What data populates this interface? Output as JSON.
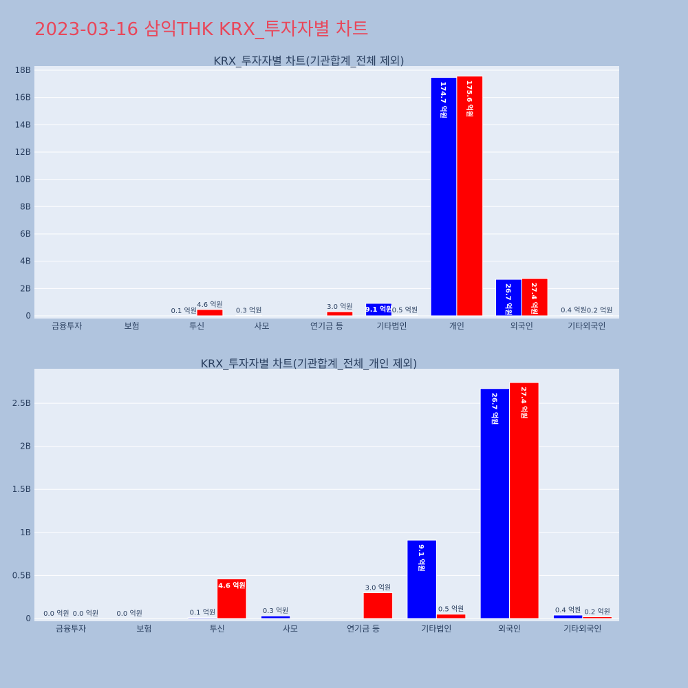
{
  "page_title": "2023-03-16 삼익THK KRX_투자자별 차트",
  "colors": {
    "series_a": "#0000ff",
    "series_b": "#ff0000",
    "background": "#b0c4de",
    "plot_bg": "#e5ecf6",
    "title": "#e8475a"
  },
  "chart_data": [
    {
      "type": "bar",
      "title": "KRX_투자자별 차트(기관합계_전체 제외)",
      "categories": [
        "금융투자",
        "보험",
        "투신",
        "사모",
        "연기금 등",
        "기타법인",
        "개인",
        "외국인",
        "기타외국인"
      ],
      "series": [
        {
          "color": "#0000ff",
          "values": [
            0,
            0,
            0.01,
            0.03,
            0,
            0.91,
            17.47,
            2.67,
            0.04
          ],
          "labels": [
            "",
            "",
            "0.1 억원",
            "0.3 억원",
            "",
            "9.1 억원",
            "174.7 억원",
            "26.7 억원",
            "0.4 억원"
          ]
        },
        {
          "color": "#ff0000",
          "values": [
            0,
            0,
            0.46,
            0,
            0.3,
            0.05,
            17.56,
            2.74,
            0.02
          ],
          "labels": [
            "",
            "",
            "4.6 억원",
            "",
            "3.0 억원",
            "0.5 억원",
            "175.6 억원",
            "27.4 억원",
            "0.2 억원"
          ]
        }
      ],
      "yticks": [
        0,
        2,
        4,
        6,
        8,
        10,
        12,
        14,
        16,
        18
      ],
      "ytick_labels": [
        "0",
        "2B",
        "4B",
        "6B",
        "8B",
        "10B",
        "12B",
        "14B",
        "16B",
        "18B"
      ],
      "ylim": [
        0,
        18.3
      ]
    },
    {
      "type": "bar",
      "title": "KRX_투자자별 차트(기관합계_전체_개인 제외)",
      "categories": [
        "금융투자",
        "보험",
        "투신",
        "사모",
        "연기금 등",
        "기타법인",
        "외국인",
        "기타외국인"
      ],
      "series": [
        {
          "color": "#0000ff",
          "values": [
            0,
            0,
            0.01,
            0.03,
            0,
            0.91,
            2.67,
            0.04
          ],
          "labels": [
            "0.0 억원",
            "0.0 억원",
            "0.1 억원",
            "0.3 억원",
            "",
            "9.1 억원",
            "26.7 억원",
            "0.4 억원"
          ]
        },
        {
          "color": "#ff0000",
          "values": [
            0,
            0,
            0.46,
            0,
            0.3,
            0.05,
            2.74,
            0.02
          ],
          "labels": [
            "0.0 억원",
            "",
            "4.6 억원",
            "",
            "3.0 억원",
            "0.5 억원",
            "27.4 억원",
            "0.2 억원"
          ]
        }
      ],
      "yticks": [
        0,
        0.5,
        1,
        1.5,
        2,
        2.5
      ],
      "ytick_labels": [
        "0",
        "0.5B",
        "1B",
        "1.5B",
        "2B",
        "2.5B"
      ],
      "ylim": [
        0,
        2.9
      ]
    }
  ]
}
